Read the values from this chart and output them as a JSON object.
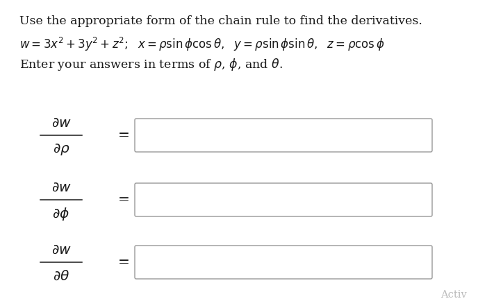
{
  "background_color": "#ffffff",
  "title_line": "Use the appropriate form of the chain rule to find the derivatives.",
  "eq_parts": {
    "main": "w = 3x² + 3y² + z²;  x = ρ sin ϕ cos θ,  y = ρ sin ϕ sin θ,  z = ρ cos ϕ"
  },
  "instruction_line": "Enter your answers in terms of ρ, ϕ, and θ.",
  "denom_latex": [
    "\\partial\\rho",
    "\\partial\\phi",
    "\\partial\\theta"
  ],
  "text_color": "#1a1a1a",
  "box_edge_color": "#999999",
  "activ_text": "Activ",
  "activ_color": "#bbbbbb",
  "font_size_title": 12.5,
  "font_size_eq": 12.0,
  "font_size_deriv": 14.5,
  "font_size_activ": 10.5
}
